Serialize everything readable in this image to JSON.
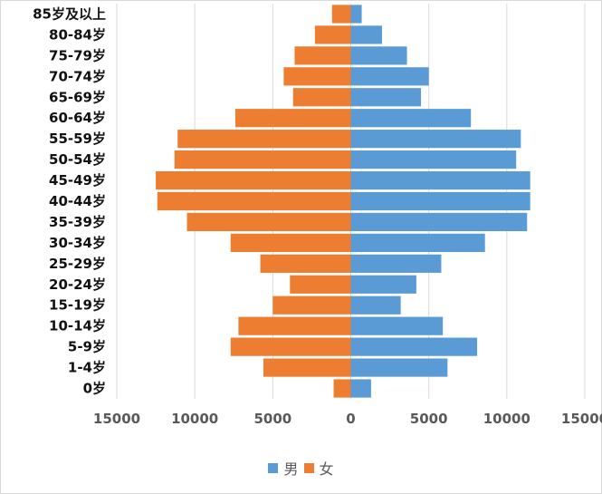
{
  "chart_data": {
    "type": "bar",
    "orientation": "horizontal-pyramid",
    "title": "",
    "categories": [
      "85岁及以上",
      "80-84岁",
      "75-79岁",
      "70-74岁",
      "65-69岁",
      "60-64岁",
      "55-59岁",
      "50-54岁",
      "45-49岁",
      "40-44岁",
      "35-39岁",
      "30-34岁",
      "25-29岁",
      "20-24岁",
      "15-19岁",
      "10-14岁",
      "5-9岁",
      "1-4岁",
      "0岁"
    ],
    "series": [
      {
        "name": "男",
        "color": "#5B9BD5",
        "side": "right",
        "values": [
          700,
          2000,
          3600,
          5000,
          4500,
          7700,
          10900,
          10600,
          11500,
          11500,
          11300,
          8600,
          5800,
          4200,
          3200,
          5900,
          8100,
          6200,
          1300
        ]
      },
      {
        "name": "女",
        "color": "#ED7D31",
        "side": "left",
        "values": [
          1200,
          2300,
          3600,
          4300,
          3700,
          7400,
          11100,
          11300,
          12500,
          12400,
          10500,
          7700,
          5800,
          3900,
          5000,
          7200,
          7700,
          5600,
          1100
        ]
      }
    ],
    "xlim": [
      -15000,
      15000
    ],
    "xticks": [
      -15000,
      -10000,
      -5000,
      0,
      5000,
      10000,
      15000
    ],
    "xtick_labels": [
      "15000",
      "10000",
      "5000",
      "0",
      "5000",
      "10000",
      "15000"
    ],
    "grid": true,
    "legend_position": "bottom",
    "xlabel": "",
    "ylabel": ""
  }
}
